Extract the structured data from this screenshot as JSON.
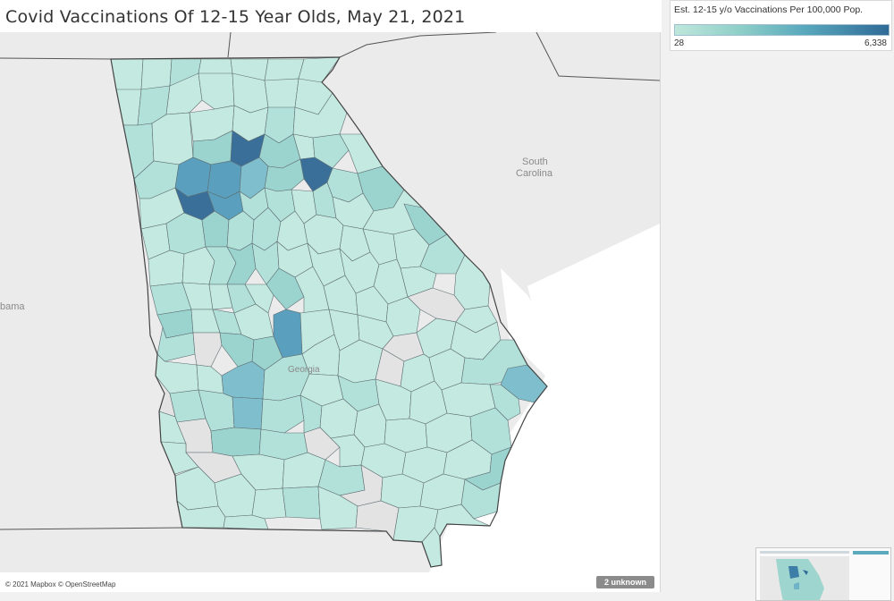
{
  "title": "Covid Vaccinations Of 12-15 Year Olds, May 21, 2021",
  "legend": {
    "title": "Est. 12-15 y/o Vaccinations Per 100,000 Pop.",
    "min_label": "28",
    "max_label": "6,338",
    "min_value": 28,
    "max_value": 6338,
    "color_low": "#bfe7dc",
    "color_high": "#2f6a97"
  },
  "map": {
    "labels": {
      "south_carolina_line1": "South",
      "south_carolina_line2": "Carolina",
      "alabama": "bama",
      "georgia": "Georgia"
    },
    "attribution": "© 2021 Mapbox © OpenStreetMap",
    "unknown_badge": "2 unknown"
  },
  "colors": {
    "no_data": "#e4e4e4",
    "background_land": "#ececec",
    "water": "#ffffff"
  }
}
